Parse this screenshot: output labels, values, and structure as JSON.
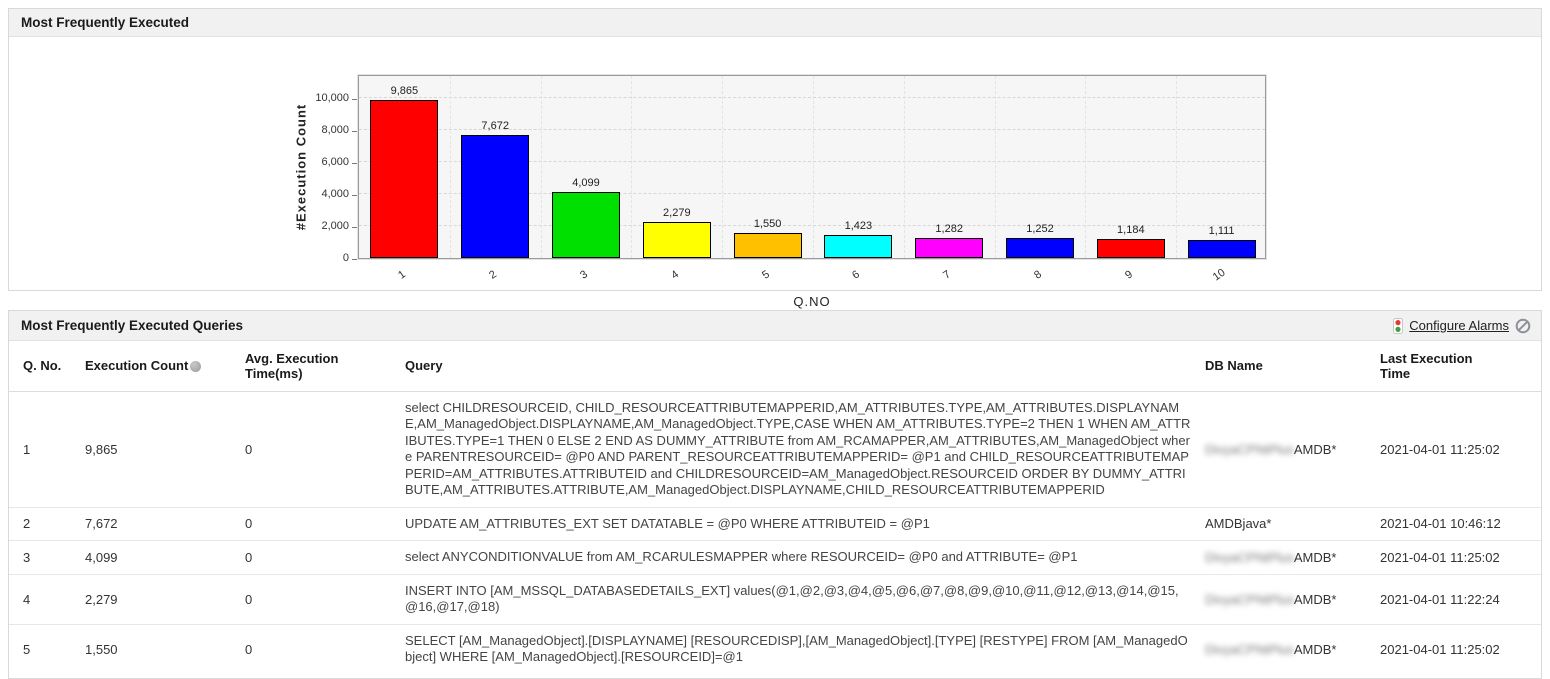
{
  "chart_panel": {
    "title": "Most Frequently Executed"
  },
  "chart_data": {
    "type": "bar",
    "title": "",
    "categories": [
      "1",
      "2",
      "3",
      "4",
      "5",
      "6",
      "7",
      "8",
      "9",
      "10"
    ],
    "values": [
      9865,
      7672,
      4099,
      2279,
      1550,
      1423,
      1282,
      1252,
      1184,
      1111
    ],
    "value_labels": [
      "9,865",
      "7,672",
      "4,099",
      "2,279",
      "1,550",
      "1,423",
      "1,282",
      "1,252",
      "1,184",
      "1,111"
    ],
    "bar_colors": [
      "#ff0000",
      "#0000ff",
      "#00e000",
      "#ffff00",
      "#ffc000",
      "#00ffff",
      "#ff00ff",
      "#0000ff",
      "#ff0000",
      "#0000ff"
    ],
    "xlabel": "Q.NO",
    "ylabel": "#Execution Count",
    "ylim": [
      0,
      11500
    ],
    "yticks": [
      0,
      2000,
      4000,
      6000,
      8000,
      10000
    ],
    "ytick_labels": [
      "0",
      "2,000",
      "4,000",
      "6,000",
      "8,000",
      "10,000"
    ],
    "grid": true,
    "legend": false
  },
  "table_panel": {
    "title": "Most Frequently Executed Queries",
    "configure_alarms_label": "Configure Alarms",
    "icons": {
      "alarm_icon": "traffic-light-icon",
      "disable_icon": "prohibition-icon",
      "sort_icon": "sort-ball-icon"
    },
    "columns": {
      "qno": "Q. No.",
      "count": "Execution Count",
      "avg": "Avg. Execution Time(ms)",
      "query": "Query",
      "db": "DB Name",
      "time": "Last Execution Time"
    },
    "rows": [
      {
        "qno": "1",
        "count": "9,865",
        "avg": "0",
        "query": "select CHILDRESOURCEID, CHILD_RESOURCEATTRIBUTEMAPPERID,AM_ATTRIBUTES.TYPE,AM_ATTRIBUTES.DISPLAYNAME,AM_ManagedObject.DISPLAYNAME,AM_ManagedObject.TYPE,CASE WHEN AM_ATTRIBUTES.TYPE=2 THEN 1 WHEN AM_ATTRIBUTES.TYPE=1 THEN 0 ELSE 2 END AS DUMMY_ATTRIBUTE from AM_RCAMAPPER,AM_ATTRIBUTES,AM_ManagedObject where PARENTRESOURCEID= @P0 AND PARENT_RESOURCEATTRIBUTEMAPPERID= @P1 and CHILD_RESOURCEATTRIBUTEMAPPERID=AM_ATTRIBUTES.ATTRIBUTEID and CHILDRESOURCEID=AM_ManagedObject.RESOURCEID ORDER BY DUMMY_ATTRIBUTE,AM_ATTRIBUTES.ATTRIBUTE,AM_ManagedObject.DISPLAYNAME,CHILD_RESOURCEATTRIBUTEMAPPERID",
        "db_redacted": "DivyaCPNtPlus",
        "db_visible": "AMDB*",
        "time": "2021-04-01 11:25:02"
      },
      {
        "qno": "2",
        "count": "7,672",
        "avg": "0",
        "query": "UPDATE AM_ATTRIBUTES_EXT SET DATATABLE = @P0 WHERE ATTRIBUTEID = @P1",
        "db_redacted": "",
        "db_visible": "AMDBjava*",
        "time": "2021-04-01 10:46:12"
      },
      {
        "qno": "3",
        "count": "4,099",
        "avg": "0",
        "query": "select ANYCONDITIONVALUE from AM_RCARULESMAPPER where RESOURCEID= @P0 and ATTRIBUTE= @P1",
        "db_redacted": "DivyaCPNtPlus",
        "db_visible": "AMDB*",
        "time": "2021-04-01 11:25:02"
      },
      {
        "qno": "4",
        "count": "2,279",
        "avg": "0",
        "query": "INSERT INTO [AM_MSSQL_DATABASEDETAILS_EXT] values(@1,@2,@3,@4,@5,@6,@7,@8,@9,@10,@11,@12,@13,@14,@15,@16,@17,@18)",
        "db_redacted": "DivyaCPNtPlus",
        "db_visible": "AMDB*",
        "time": "2021-04-01 11:22:24"
      },
      {
        "qno": "5",
        "count": "1,550",
        "avg": "0",
        "query": "SELECT [AM_ManagedObject].[DISPLAYNAME] [RESOURCEDISP],[AM_ManagedObject].[TYPE] [RESTYPE] FROM [AM_ManagedObject] WHERE [AM_ManagedObject].[RESOURCEID]=@1",
        "db_redacted": "DivyaCPNtPlus",
        "db_visible": "AMDB*",
        "time": "2021-04-01 11:25:02"
      }
    ]
  }
}
